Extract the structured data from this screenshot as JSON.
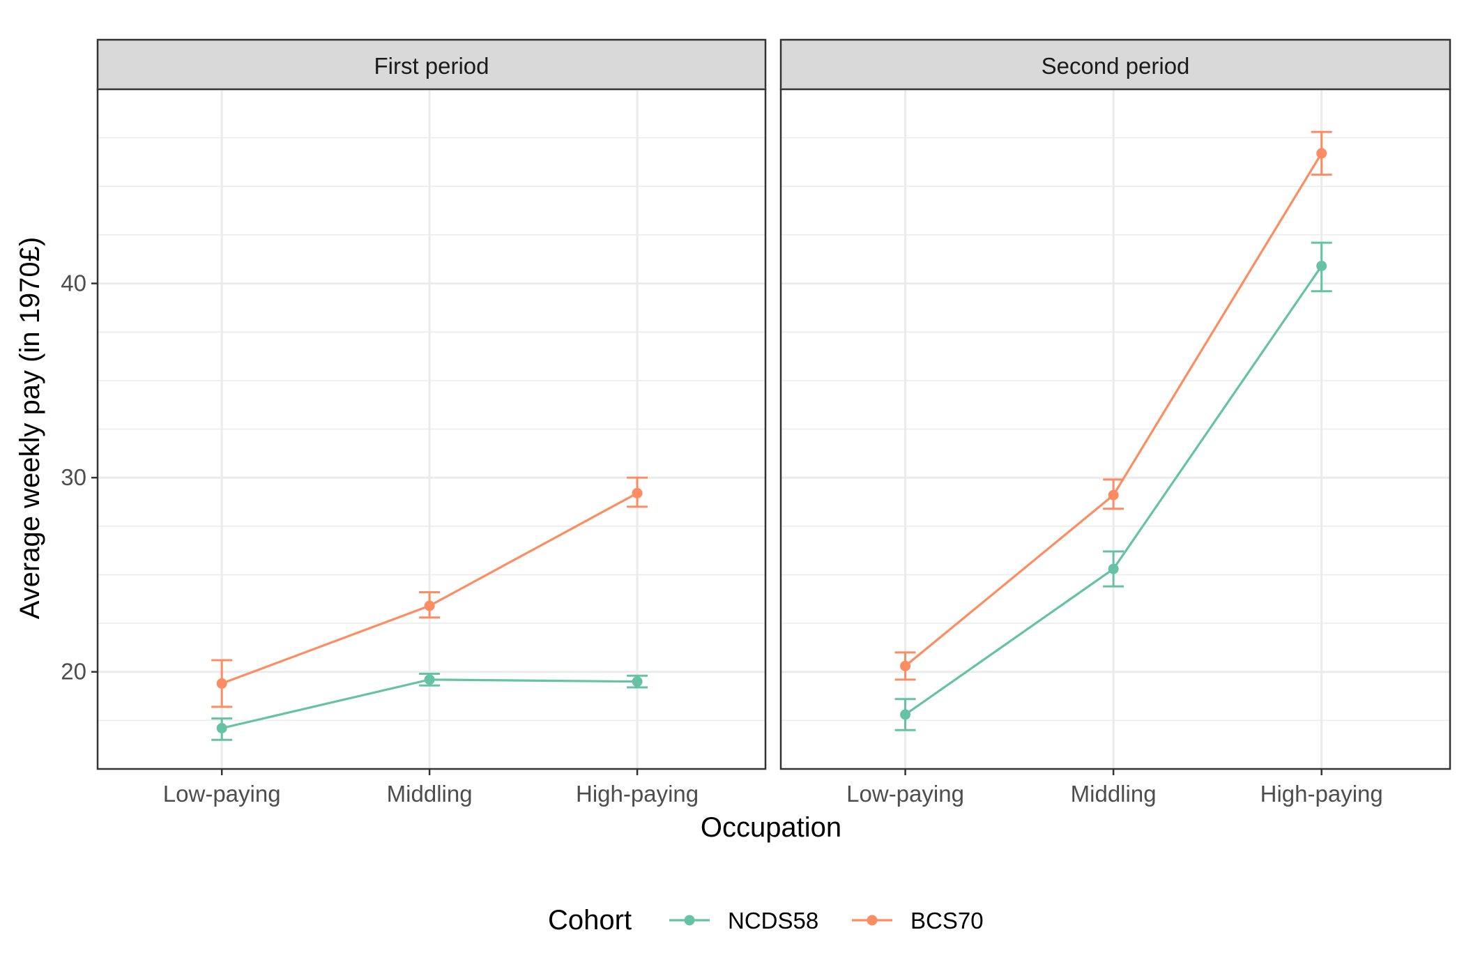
{
  "chart_data": {
    "type": "line",
    "facets": [
      "First period",
      "Second period"
    ],
    "categories": [
      "Low-paying",
      "Middling",
      "High-paying"
    ],
    "xlabel": "Occupation",
    "ylabel": "Average weekly pay (in 1970£)",
    "ylim": [
      15,
      50
    ],
    "yticks": [
      20,
      30,
      40
    ],
    "grid": true,
    "legend": {
      "title": "Cohort",
      "position": "bottom"
    },
    "series": [
      {
        "name": "NCDS58",
        "color": "#66c2a5",
        "panels": [
          {
            "values": [
              17.1,
              19.6,
              19.5
            ],
            "lower": [
              16.5,
              19.3,
              19.2
            ],
            "upper": [
              17.6,
              19.9,
              19.8
            ]
          },
          {
            "values": [
              17.8,
              25.3,
              40.9
            ],
            "lower": [
              17.0,
              24.4,
              39.6
            ],
            "upper": [
              18.6,
              26.2,
              42.1
            ]
          }
        ]
      },
      {
        "name": "BCS70",
        "color": "#fc8d62",
        "panels": [
          {
            "values": [
              19.4,
              23.4,
              29.2
            ],
            "lower": [
              18.2,
              22.8,
              28.5
            ],
            "upper": [
              20.6,
              24.1,
              30.0
            ]
          },
          {
            "values": [
              20.3,
              29.1,
              46.7
            ],
            "lower": [
              19.6,
              28.4,
              45.6
            ],
            "upper": [
              21.0,
              29.9,
              47.8
            ]
          }
        ]
      }
    ]
  }
}
